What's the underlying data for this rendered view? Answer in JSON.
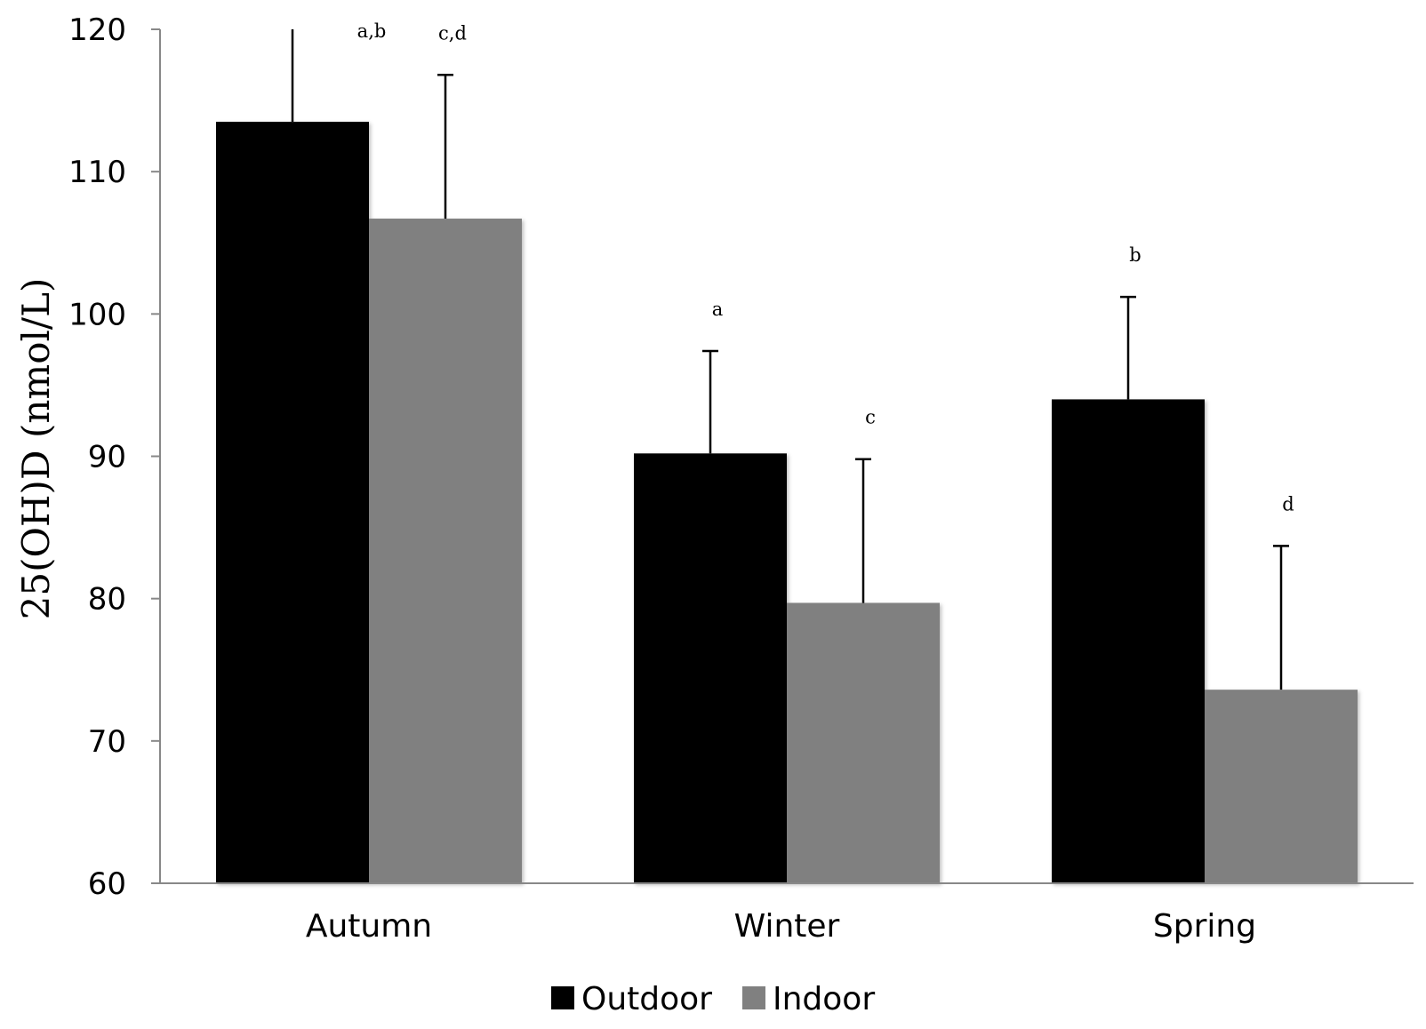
{
  "chart_data": {
    "type": "bar",
    "categories": [
      "Autumn",
      "Winter",
      "Spring"
    ],
    "series": [
      {
        "name": "Outdoor",
        "color": "#000000",
        "values": [
          113.5,
          90.2,
          94.0
        ],
        "error_upper": [
          120.5,
          97.4,
          101.2
        ],
        "annotations": [
          "a,b",
          "a",
          "b"
        ]
      },
      {
        "name": "Indoor",
        "color": "#808080",
        "values": [
          106.7,
          79.7,
          73.6
        ],
        "error_upper": [
          116.8,
          89.8,
          83.7
        ],
        "annotations": [
          "c,d",
          "c",
          "d"
        ]
      }
    ],
    "ylabel": "25(OH)D  (nmol/L)",
    "ylim": [
      60,
      120
    ],
    "yticks": [
      60,
      70,
      80,
      90,
      100,
      110,
      120
    ],
    "ytick_labels": [
      "60",
      "70",
      "80",
      "90",
      "100",
      "110",
      "120"
    ],
    "grid": false,
    "legend": "bottom-center"
  }
}
